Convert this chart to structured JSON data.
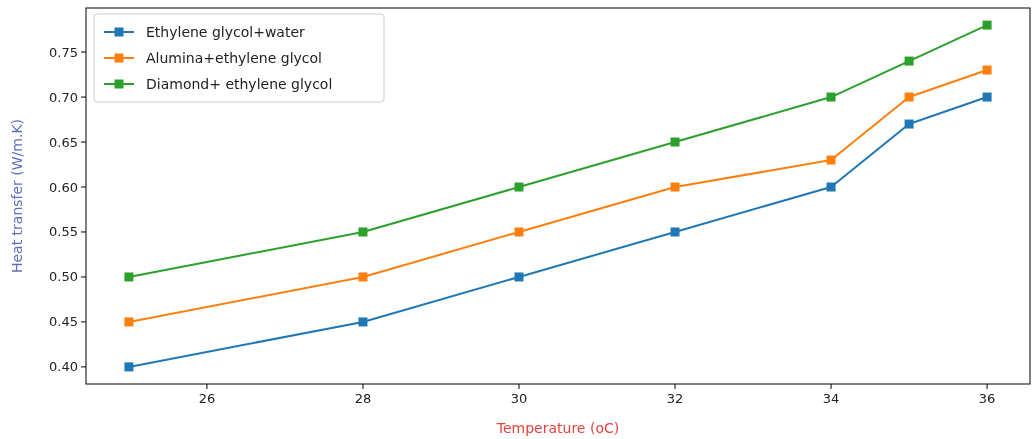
{
  "chart_data": {
    "type": "line",
    "xlabel": "Temperature (oC)",
    "ylabel": "Heat transfer (W/m.K)",
    "x": [
      25,
      28,
      30,
      32,
      34,
      35,
      36
    ],
    "series": [
      {
        "name": "Ethylene glycol+water",
        "color": "#1f77b4",
        "values": [
          0.4,
          0.45,
          0.5,
          0.55,
          0.6,
          0.67,
          0.7
        ]
      },
      {
        "name": "Alumina+ethylene glycol",
        "color": "#ff7f0e",
        "values": [
          0.45,
          0.5,
          0.55,
          0.6,
          0.63,
          0.7,
          0.73
        ]
      },
      {
        "name": "Diamond+ ethylene glycol",
        "color": "#2ca02c",
        "values": [
          0.5,
          0.55,
          0.6,
          0.65,
          0.7,
          0.74,
          0.78
        ]
      }
    ],
    "xlim": [
      24.45,
      36.55
    ],
    "xticks": [
      26,
      28,
      30,
      32,
      34,
      36
    ],
    "ylim": [
      0.381,
      0.799
    ],
    "yticks": [
      {
        "value": 0.4,
        "label": "0.40"
      },
      {
        "value": 0.45,
        "label": "0.45"
      },
      {
        "value": 0.5,
        "label": "0.50"
      },
      {
        "value": 0.55,
        "label": "0.55"
      },
      {
        "value": 0.6,
        "label": "0.60"
      },
      {
        "value": 0.65,
        "label": "0.65"
      },
      {
        "value": 0.7,
        "label": "0.70"
      },
      {
        "value": 0.75,
        "label": "0.75"
      }
    ],
    "legend": "top left",
    "marker": "square",
    "line_style": "solid",
    "grid": false
  }
}
